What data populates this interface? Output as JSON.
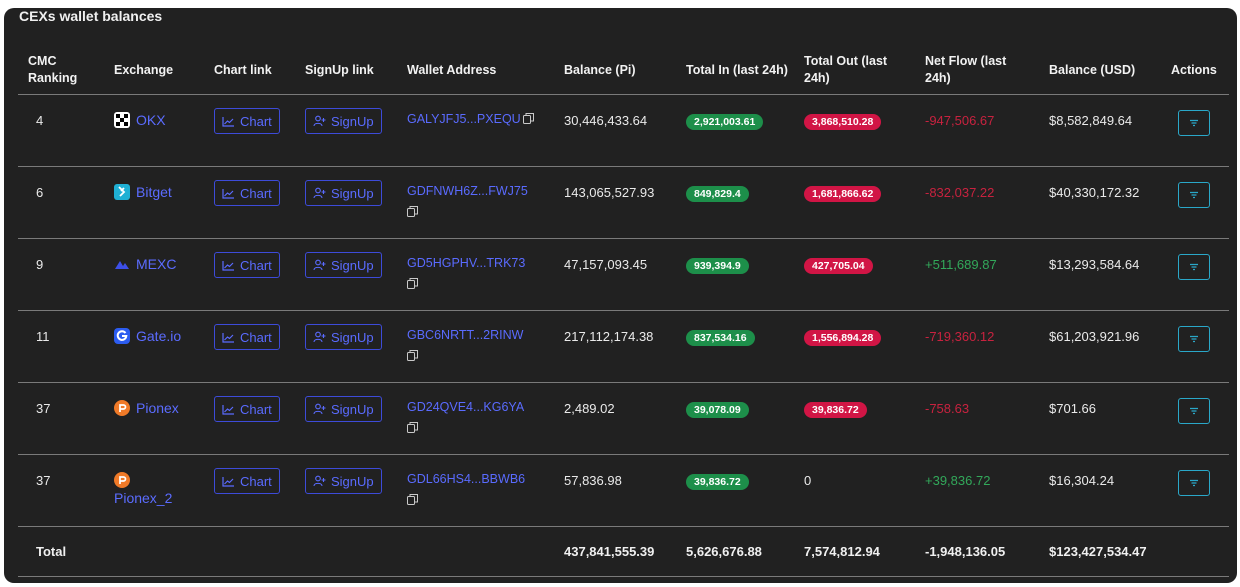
{
  "title": "CEXs wallet balances",
  "headers": {
    "rank": "CMC Ranking",
    "exchange": "Exchange",
    "chart": "Chart link",
    "signup": "SignUp link",
    "wallet": "Wallet Address",
    "balance_pi": "Balance (Pi)",
    "total_in": "Total In (last 24h)",
    "total_out": "Total Out (last 24h)",
    "net_flow": "Net Flow (last 24h)",
    "balance_usd": "Balance (USD)",
    "actions": "Actions"
  },
  "chart_label": "Chart",
  "signup_label": "SignUp",
  "rows": [
    {
      "rank": "4",
      "exchange": "OKX",
      "logo": "okx-logo-icon",
      "wallet": "GALYJFJ5...PXEQU",
      "balance_pi": "30,446,433.64",
      "total_in": "2,921,003.61",
      "total_out": "3,868,510.28",
      "net_flow": "-947,506.67",
      "net_sign": "neg",
      "balance_usd": "$8,582,849.64"
    },
    {
      "rank": "6",
      "exchange": "Bitget",
      "logo": "bitget-logo-icon",
      "wallet": "GDFNWH6Z...FWJ75",
      "balance_pi": "143,065,527.93",
      "total_in": "849,829.4",
      "total_out": "1,681,866.62",
      "net_flow": "-832,037.22",
      "net_sign": "neg",
      "balance_usd": "$40,330,172.32"
    },
    {
      "rank": "9",
      "exchange": "MEXC",
      "logo": "mexc-logo-icon",
      "wallet": "GD5HGPHV...TRK73",
      "balance_pi": "47,157,093.45",
      "total_in": "939,394.9",
      "total_out": "427,705.04",
      "net_flow": "+511,689.87",
      "net_sign": "pos",
      "balance_usd": "$13,293,584.64"
    },
    {
      "rank": "11",
      "exchange": "Gate.io",
      "logo": "gate-logo-icon",
      "wallet": "GBC6NRTT...2RINW",
      "balance_pi": "217,112,174.38",
      "total_in": "837,534.16",
      "total_out": "1,556,894.28",
      "net_flow": "-719,360.12",
      "net_sign": "neg",
      "balance_usd": "$61,203,921.96"
    },
    {
      "rank": "37",
      "exchange": "Pionex",
      "logo": "pionex-logo-icon",
      "wallet": "GD24QVE4...KG6YA",
      "balance_pi": "2,489.02",
      "total_in": "39,078.09",
      "total_out": "39,836.72",
      "net_flow": "-758.63",
      "net_sign": "neg",
      "balance_usd": "$701.66"
    },
    {
      "rank": "37",
      "exchange": "Pionex_2",
      "logo": "pionex-logo-icon",
      "wallet": "GDL66HS4...BBWB6",
      "balance_pi": "57,836.98",
      "total_in": "39,836.72",
      "total_out": "0",
      "net_flow": "+39,836.72",
      "net_sign": "pos",
      "balance_usd": "$16,304.24"
    }
  ],
  "total": {
    "label": "Total",
    "balance_pi": "437,841,555.39",
    "total_in": "5,626,676.88",
    "total_out": "7,574,812.94",
    "net_flow": "-1,948,136.05",
    "balance_usd": "$123,427,534.47"
  },
  "colors": {
    "accent": "#5a6bff",
    "green": "#1d8f4a",
    "red": "#d11545",
    "panel": "#212121"
  }
}
